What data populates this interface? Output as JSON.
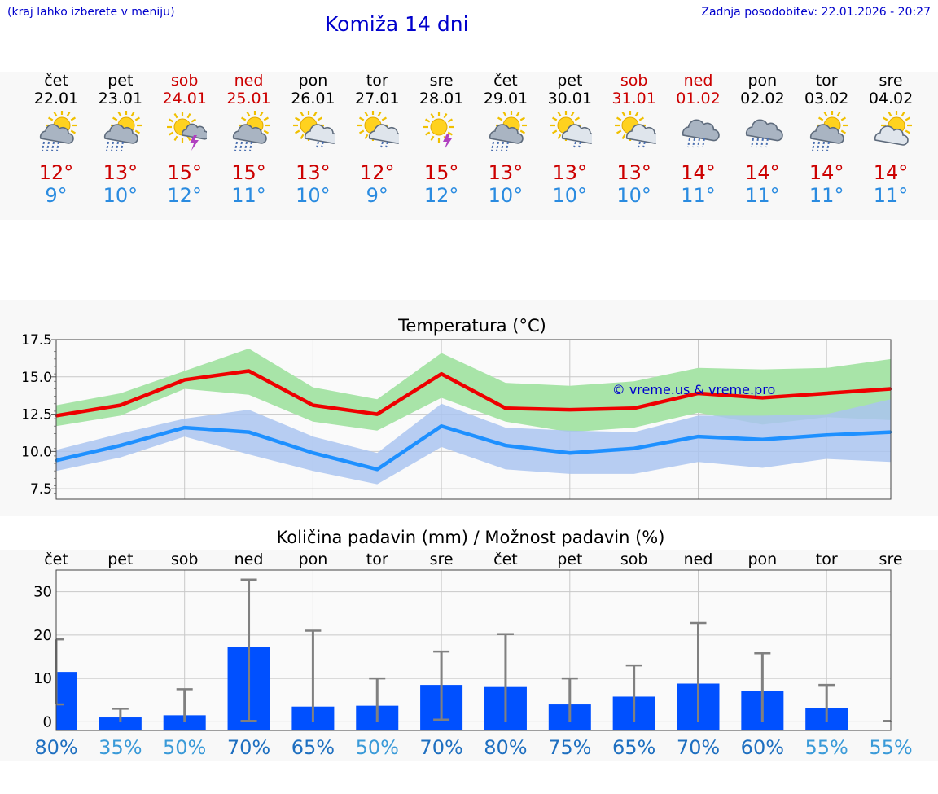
{
  "header": {
    "menu_hint": "(kraj lahko izberete v meniju)",
    "title": "Komiža 14 dni",
    "updated": "Zadnja posodobitev: 22.01.2026 - 20:27"
  },
  "colors": {
    "title": "#0000cc",
    "weekend": "#cc0000",
    "temp_max": "#cc0000",
    "temp_min": "#2a8be0",
    "max_line": "#ee0000",
    "min_line": "#1e90ff",
    "max_band": "#a8e4a8",
    "min_band": "#aac4f0",
    "bar": "#0050ff",
    "whisker": "#808080"
  },
  "days": [
    {
      "name": "čet",
      "date": "22.01",
      "weekend": false,
      "icon": "sun-cloud-rain-icon",
      "tmax": "12°",
      "tmin": "9°"
    },
    {
      "name": "pet",
      "date": "23.01",
      "weekend": false,
      "icon": "sun-cloud-rain-icon",
      "tmax": "13°",
      "tmin": "10°"
    },
    {
      "name": "sob",
      "date": "24.01",
      "weekend": true,
      "icon": "sun-cloud-thunder-icon",
      "tmax": "15°",
      "tmin": "12°"
    },
    {
      "name": "ned",
      "date": "25.01",
      "weekend": true,
      "icon": "sun-cloud-rain-icon",
      "tmax": "15°",
      "tmin": "11°"
    },
    {
      "name": "pon",
      "date": "26.01",
      "weekend": false,
      "icon": "sun-cloud-light-rain-icon",
      "tmax": "13°",
      "tmin": "10°"
    },
    {
      "name": "tor",
      "date": "27.01",
      "weekend": false,
      "icon": "sun-cloud-light-rain-icon",
      "tmax": "12°",
      "tmin": "9°"
    },
    {
      "name": "sre",
      "date": "28.01",
      "weekend": false,
      "icon": "sun-thunder-icon",
      "tmax": "15°",
      "tmin": "12°"
    },
    {
      "name": "čet",
      "date": "29.01",
      "weekend": false,
      "icon": "sun-cloud-rain-icon",
      "tmax": "13°",
      "tmin": "10°"
    },
    {
      "name": "pet",
      "date": "30.01",
      "weekend": false,
      "icon": "sun-cloud-light-rain-icon",
      "tmax": "13°",
      "tmin": "10°"
    },
    {
      "name": "sob",
      "date": "31.01",
      "weekend": true,
      "icon": "sun-cloud-light-rain-icon",
      "tmax": "13°",
      "tmin": "10°"
    },
    {
      "name": "ned",
      "date": "01.02",
      "weekend": true,
      "icon": "cloud-rain-icon",
      "tmax": "14°",
      "tmin": "11°"
    },
    {
      "name": "pon",
      "date": "02.02",
      "weekend": false,
      "icon": "cloud-rain-icon",
      "tmax": "14°",
      "tmin": "11°"
    },
    {
      "name": "tor",
      "date": "03.02",
      "weekend": false,
      "icon": "sun-cloud-rain-icon",
      "tmax": "14°",
      "tmin": "11°"
    },
    {
      "name": "sre",
      "date": "04.02",
      "weekend": false,
      "icon": "sun-cloud-icon",
      "tmax": "14°",
      "tmin": "11°"
    }
  ],
  "chart_data": [
    {
      "type": "line",
      "title": "Temperatura (°C)",
      "ylim": [
        6.8,
        17.5
      ],
      "yticks": [
        7.5,
        10.0,
        12.5,
        15.0,
        17.5
      ],
      "ytick_labels": [
        "7.5",
        "10.0",
        "12.5",
        "15.0",
        "17.5"
      ],
      "watermark": "© vreme.us & vreme.pro",
      "x_days": 14,
      "series": [
        {
          "name": "max",
          "values": [
            12.4,
            13.1,
            14.8,
            15.4,
            13.1,
            12.5,
            15.2,
            12.9,
            12.8,
            12.9,
            13.9,
            13.6,
            13.9,
            14.2
          ]
        },
        {
          "name": "min",
          "values": [
            9.4,
            10.4,
            11.6,
            11.3,
            9.9,
            8.8,
            11.7,
            10.4,
            9.9,
            10.2,
            11.0,
            10.8,
            11.1,
            11.3
          ]
        }
      ],
      "bands": [
        {
          "name": "max_range",
          "upper": [
            13.1,
            13.9,
            15.4,
            16.9,
            14.3,
            13.5,
            16.6,
            14.6,
            14.4,
            14.7,
            15.6,
            15.5,
            15.6,
            16.2
          ],
          "lower": [
            11.7,
            12.4,
            14.2,
            13.8,
            12.0,
            11.4,
            13.6,
            12.0,
            11.3,
            11.6,
            12.6,
            11.8,
            12.3,
            12.1
          ]
        },
        {
          "name": "min_range",
          "upper": [
            10.1,
            11.2,
            12.2,
            12.8,
            11.0,
            9.9,
            13.2,
            11.6,
            11.4,
            11.3,
            12.4,
            12.4,
            12.5,
            13.5
          ],
          "lower": [
            8.7,
            9.6,
            11.0,
            9.8,
            8.7,
            7.8,
            10.3,
            8.8,
            8.5,
            8.5,
            9.3,
            8.9,
            9.5,
            9.3
          ]
        }
      ]
    },
    {
      "type": "bar",
      "title": "Količina padavin (mm) / Možnost padavin (%)",
      "categories": [
        "čet",
        "pet",
        "sob",
        "ned",
        "pon",
        "tor",
        "sre",
        "čet",
        "pet",
        "sob",
        "ned",
        "pon",
        "tor",
        "sre"
      ],
      "ylim": [
        -2,
        35
      ],
      "yticks": [
        0,
        10,
        20,
        30
      ],
      "ytick_labels": [
        "0",
        "10",
        "20",
        "30"
      ],
      "values": [
        11.5,
        1.0,
        1.5,
        17.3,
        3.5,
        3.7,
        8.5,
        8.2,
        4.0,
        5.8,
        8.8,
        7.2,
        3.2,
        0.0
      ],
      "error_low": [
        4.0,
        0,
        0,
        0.2,
        0,
        0,
        0.5,
        0,
        0,
        0,
        0,
        0,
        0,
        0
      ],
      "error_high": [
        19.0,
        3.0,
        7.5,
        32.8,
        21.0,
        10.0,
        16.2,
        20.2,
        10.0,
        13.0,
        22.8,
        15.8,
        8.5,
        0.2
      ],
      "probabilities": [
        "80%",
        "35%",
        "50%",
        "70%",
        "65%",
        "50%",
        "70%",
        "80%",
        "75%",
        "65%",
        "70%",
        "60%",
        "55%",
        "55%"
      ]
    }
  ]
}
